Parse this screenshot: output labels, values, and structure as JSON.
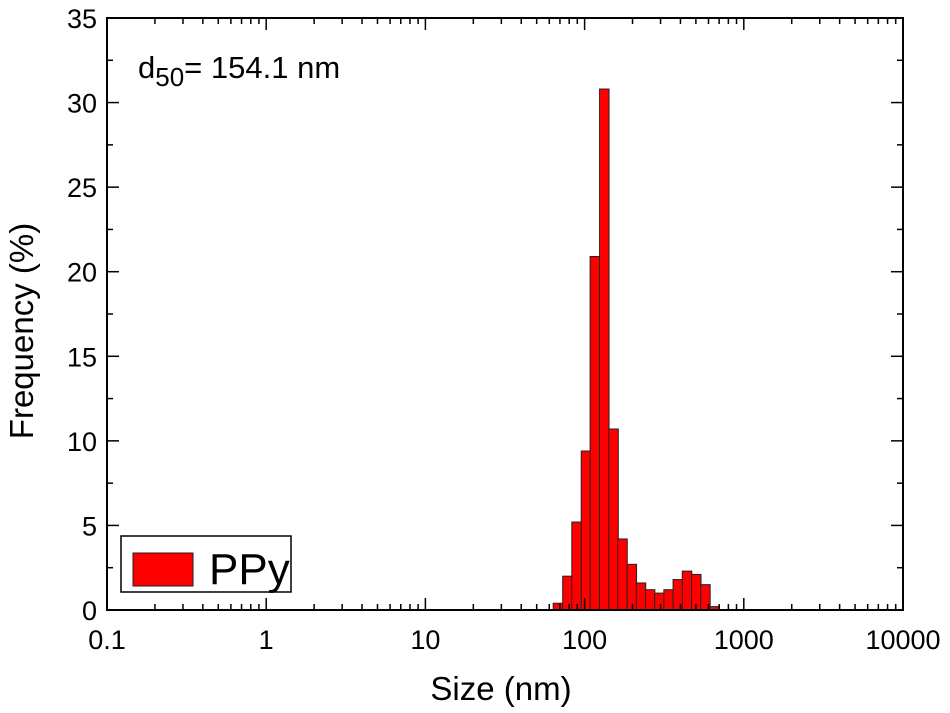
{
  "chart_data": {
    "type": "bar",
    "xscale": "log",
    "xlim": [
      0.1,
      10000
    ],
    "ylim": [
      0,
      35
    ],
    "xlabel": "Size (nm)",
    "ylabel": "Frequency (%)",
    "xticks": [
      "0.1",
      "1",
      "10",
      "100",
      "1000",
      "10000"
    ],
    "yticks": [
      "0",
      "5",
      "10",
      "15",
      "20",
      "25",
      "30",
      "35"
    ],
    "annotation": {
      "main": "d",
      "sub": "50",
      "rest": "= 154.1 nm"
    },
    "legend": {
      "label": "PPy",
      "position": "bottom-left"
    },
    "bar_color": "#ff0000",
    "series": [
      {
        "name": "PPy",
        "x": [
          68,
          78,
          89,
          102,
          116,
          133,
          152,
          173,
          198,
          226,
          258,
          295,
          337,
          385,
          440,
          503,
          574,
          656,
          749,
          856,
          977,
          1116
        ],
        "values": [
          0.4,
          2.0,
          5.2,
          9.4,
          20.9,
          30.8,
          10.7,
          4.2,
          2.7,
          1.6,
          1.2,
          1.0,
          1.2,
          1.8,
          2.3,
          2.1,
          1.5,
          0.2,
          0,
          0,
          0,
          0
        ]
      }
    ]
  }
}
